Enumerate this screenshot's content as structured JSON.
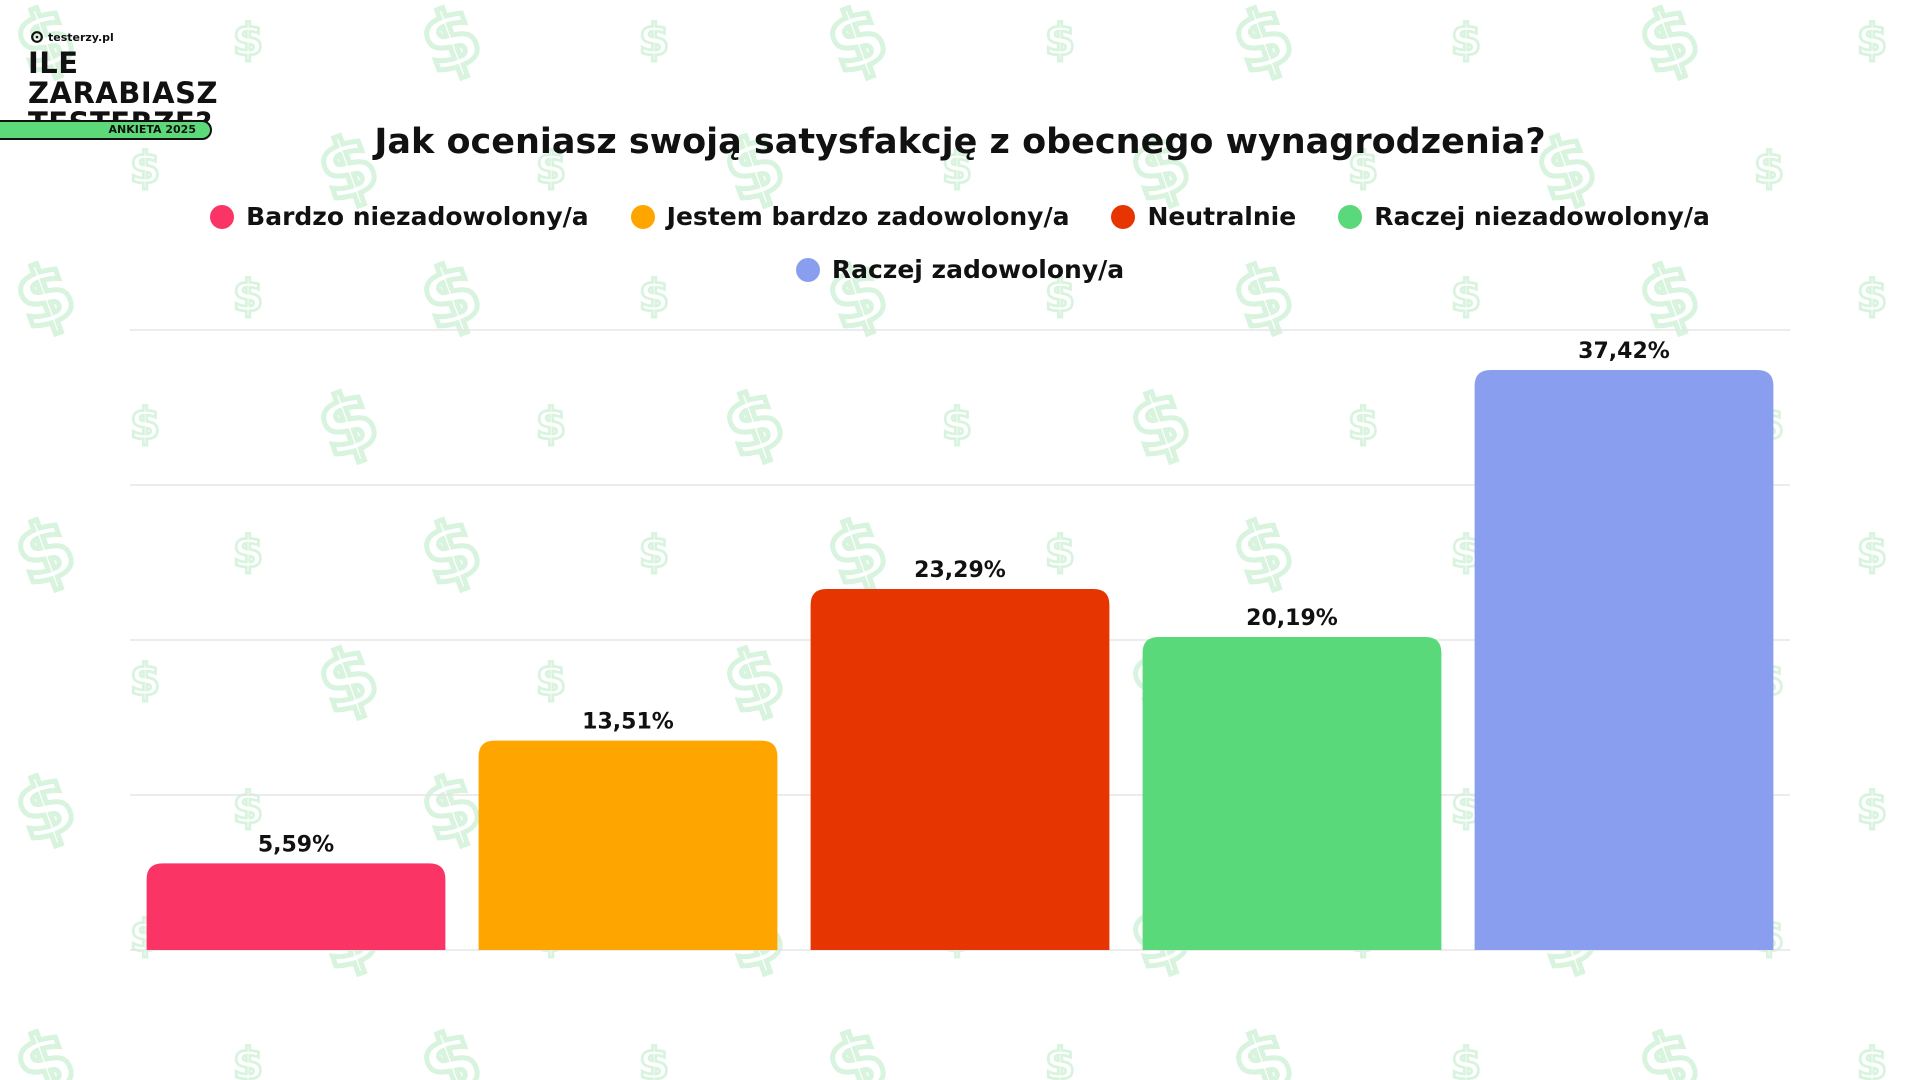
{
  "header": {
    "brand": "testerzy.pl",
    "title_line1": "ILE ZARABIASZ",
    "title_line2": "TESTERZE?",
    "badge": "ANKIETA 2025"
  },
  "colors": {
    "pattern": "#d8f3de",
    "grid": "#e6e6e6",
    "badge": "#5dd97a"
  },
  "chart_data": {
    "type": "bar",
    "title": "Jak oceniasz swoją satysfakcję z obecnego wynagrodzenia?",
    "categories": [
      "Bardzo niezadowolony/a",
      "Jestem bardzo zadowolony/a",
      "Neutralnie",
      "Raczej niezadowolony/a",
      "Raczej zadowolony/a"
    ],
    "values": [
      5.59,
      13.51,
      23.29,
      20.19,
      37.42
    ],
    "labels": [
      "5,59%",
      "13,51%",
      "23,29%",
      "20,19%",
      "37,42%"
    ],
    "colors": [
      "#fa3566",
      "#ffa500",
      "#e63500",
      "#5ad97a",
      "#8a9ef0"
    ],
    "ylim": [
      0,
      40
    ],
    "grid": true,
    "legend": "top",
    "xlabel": "",
    "ylabel": ""
  }
}
